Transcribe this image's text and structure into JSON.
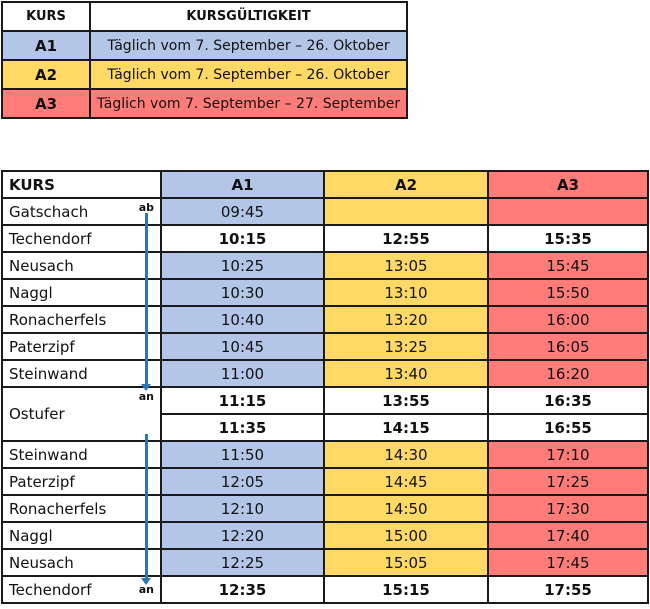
{
  "legend": {
    "headers": [
      "KURS",
      "KURSGÜLTIGKEIT"
    ],
    "rows": [
      {
        "kurs": "A1",
        "valid": "Täglich vom 7. September – 26. Oktober"
      },
      {
        "kurs": "A2",
        "valid": "Täglich vom 7. September – 26. Oktober"
      },
      {
        "kurs": "A3",
        "valid": "Täglich vom 7. September – 27. September"
      }
    ]
  },
  "colors": {
    "A1": "#b4c6e7",
    "A2": "#ffd966",
    "A3": "#ff7c78",
    "arrow": "#2e75b6"
  },
  "schedule": {
    "headers": [
      "KURS",
      "A1",
      "A2",
      "A3"
    ],
    "labels": {
      "depart": "ab",
      "arrive": "an"
    },
    "rows": [
      {
        "stop": "Gatschach",
        "times": [
          "09:45",
          "",
          ""
        ],
        "tag": "ab"
      },
      {
        "stop": "Techendorf",
        "times": [
          "10:15",
          "12:55",
          "15:35"
        ],
        "bold": true
      },
      {
        "stop": "Neusach",
        "times": [
          "10:25",
          "13:05",
          "15:45"
        ]
      },
      {
        "stop": "Naggl",
        "times": [
          "10:30",
          "13:10",
          "15:50"
        ]
      },
      {
        "stop": "Ronacherfels",
        "times": [
          "10:40",
          "13:20",
          "16:00"
        ]
      },
      {
        "stop": "Paterzipf",
        "times": [
          "10:45",
          "13:25",
          "16:05"
        ]
      },
      {
        "stop": "Steinwand",
        "times": [
          "11:00",
          "13:40",
          "16:20"
        ]
      },
      {
        "stop": "Ostufer",
        "times": [
          "11:15",
          "13:55",
          "16:35"
        ],
        "bold": true,
        "tag": "an",
        "span": true
      },
      {
        "stop": "",
        "times": [
          "11:35",
          "14:15",
          "16:55"
        ],
        "bold": true,
        "cont": true
      },
      {
        "stop": "Steinwand",
        "times": [
          "11:50",
          "14:30",
          "17:10"
        ]
      },
      {
        "stop": "Paterzipf",
        "times": [
          "12:05",
          "14:45",
          "17:25"
        ]
      },
      {
        "stop": "Ronacherfels",
        "times": [
          "12:10",
          "14:50",
          "17:30"
        ]
      },
      {
        "stop": "Naggl",
        "times": [
          "12:20",
          "15:00",
          "17:40"
        ]
      },
      {
        "stop": "Neusach",
        "times": [
          "12:25",
          "15:05",
          "17:45"
        ]
      },
      {
        "stop": "Techendorf",
        "times": [
          "12:35",
          "15:15",
          "17:55"
        ],
        "bold": true,
        "tag": "an"
      }
    ]
  }
}
